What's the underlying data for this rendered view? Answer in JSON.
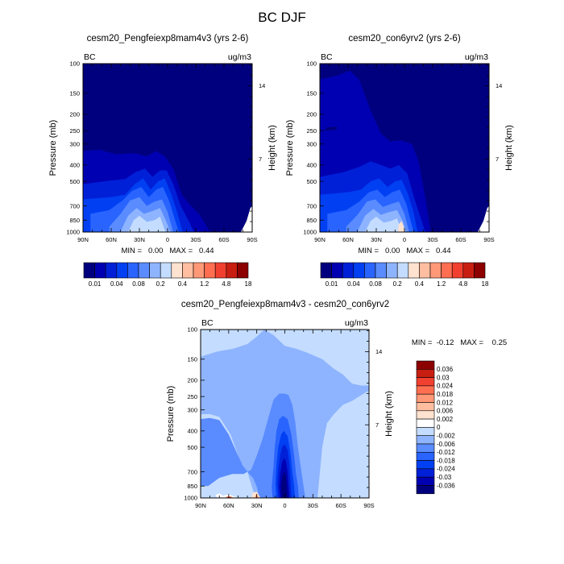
{
  "page": {
    "title": "BC DJF"
  },
  "colors": {
    "abs_palette": [
      "#00007f",
      "#0000b2",
      "#0020d8",
      "#0040f2",
      "#2a64ff",
      "#5a8cff",
      "#8eb4ff",
      "#c4dcff",
      "#ffe2d0",
      "#ffbea0",
      "#ff9876",
      "#ff6e50",
      "#f24030",
      "#c81e12",
      "#8c0000"
    ],
    "diff_palette": [
      "#00007f",
      "#0000b2",
      "#0020d8",
      "#0040f2",
      "#2a64ff",
      "#5a8cff",
      "#8eb4ff",
      "#c4dcff",
      "#ffffff",
      "#ffe2d0",
      "#ffbea0",
      "#ff9876",
      "#ff6e50",
      "#f24030",
      "#c81e12",
      "#8c0000"
    ],
    "background": "#ffffff",
    "axis": "#000000"
  },
  "chart_data": [
    {
      "type": "heatmap",
      "title": "cesm20_Pengfeiexp8mam4v3 (yrs 2-6)",
      "corner_left": "BC",
      "corner_right": "ug/m3",
      "ylabel": "Pressure (mb)",
      "ylabel_right": "Height (km)",
      "x_tick_labels": [
        "90N",
        "60N",
        "30N",
        "0",
        "30S",
        "60S",
        "90S"
      ],
      "x_tick_values": [
        90,
        60,
        30,
        0,
        -30,
        -60,
        -90
      ],
      "xlim": [
        90,
        -90
      ],
      "y_tick_labels": [
        "100",
        "150",
        "200",
        "250",
        "300",
        "400",
        "500",
        "700",
        "850",
        "1000"
      ],
      "y_tick_values": [
        100,
        150,
        200,
        250,
        300,
        400,
        500,
        700,
        850,
        1000
      ],
      "ylim": [
        100,
        1000
      ],
      "y_scale": "log-pressure",
      "height_tick_labels": [
        "14",
        "7"
      ],
      "height_tick_values": [
        14,
        7
      ],
      "stats_text": "MIN =   0.00   MAX =   0.44",
      "min": 0.0,
      "max": 0.44,
      "levels": [
        "0.01",
        "0.04",
        "0.08",
        "0.2",
        "0.4",
        "1.2",
        "4.8",
        "18"
      ]
    },
    {
      "type": "heatmap",
      "title": "cesm20_con6yrv2 (yrs 2-6)",
      "corner_left": "BC",
      "corner_right": "ug/m3",
      "ylabel": "Pressure (mb)",
      "ylabel_right": "Height (km)",
      "x_tick_labels": [
        "90N",
        "60N",
        "30N",
        "0",
        "30S",
        "60S",
        "90S"
      ],
      "x_tick_values": [
        90,
        60,
        30,
        0,
        -30,
        -60,
        -90
      ],
      "xlim": [
        90,
        -90
      ],
      "y_tick_labels": [
        "100",
        "150",
        "200",
        "250",
        "300",
        "400",
        "500",
        "700",
        "850",
        "1000"
      ],
      "y_tick_values": [
        100,
        150,
        200,
        250,
        300,
        400,
        500,
        700,
        850,
        1000
      ],
      "ylim": [
        100,
        1000
      ],
      "y_scale": "log-pressure",
      "height_tick_labels": [
        "14",
        "7"
      ],
      "height_tick_values": [
        14,
        7
      ],
      "stats_text": "MIN =   0.00   MAX =   0.44",
      "min": 0.0,
      "max": 0.44,
      "levels": [
        "0.01",
        "0.04",
        "0.08",
        "0.2",
        "0.4",
        "1.2",
        "4.8",
        "18"
      ]
    },
    {
      "type": "heatmap",
      "title": "cesm20_Pengfeiexp8mam4v3 - cesm20_con6yrv2",
      "corner_left": "BC",
      "corner_right": "ug/m3",
      "ylabel": "Pressure (mb)",
      "ylabel_right": "Height (km)",
      "x_tick_labels": [
        "90N",
        "60N",
        "30N",
        "0",
        "30S",
        "60S",
        "90S"
      ],
      "x_tick_values": [
        90,
        60,
        30,
        0,
        -30,
        -60,
        -90
      ],
      "xlim": [
        90,
        -90
      ],
      "y_tick_labels": [
        "100",
        "150",
        "200",
        "250",
        "300",
        "400",
        "500",
        "700",
        "850",
        "1000"
      ],
      "y_tick_values": [
        100,
        150,
        200,
        250,
        300,
        400,
        500,
        700,
        850,
        1000
      ],
      "ylim": [
        100,
        1000
      ],
      "y_scale": "log-pressure",
      "height_tick_labels": [
        "14",
        "7"
      ],
      "height_tick_values": [
        14,
        7
      ],
      "stats_text": "MIN =  -0.12   MAX =    0.25",
      "min": -0.12,
      "max": 0.25,
      "levels": [
        "0.036",
        "0.03",
        "0.024",
        "0.018",
        "0.012",
        "0.006",
        "0.002",
        "0",
        "-0.002",
        "-0.006",
        "-0.012",
        "-0.018",
        "-0.024",
        "-0.03",
        "-0.036"
      ]
    }
  ]
}
